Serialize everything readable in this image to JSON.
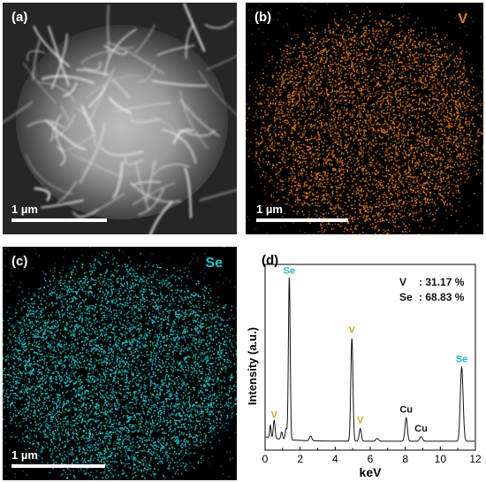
{
  "panel_a": {
    "label": "(a)",
    "scale": "1 µm"
  },
  "panel_b": {
    "label": "(b)",
    "element": "V",
    "scale": "1 µm",
    "color": "#e07b1f"
  },
  "panel_c": {
    "label": "(c)",
    "element": "Se",
    "scale": "1 µm",
    "color": "#22c3c8"
  },
  "panel_d": {
    "label": "(d)",
    "composition": [
      {
        "element": "V",
        "value": "31.17 %"
      },
      {
        "element": "Se",
        "value": "68.83 %"
      }
    ]
  },
  "chart_data": {
    "type": "line",
    "title": "",
    "xlabel": "keV",
    "ylabel": "Intensity (a.u.)",
    "xlim": [
      0,
      12
    ],
    "ylim": [
      0,
      100
    ],
    "xticks": [
      0,
      2,
      4,
      6,
      8,
      10,
      12
    ],
    "peaks": [
      {
        "x": 0.52,
        "y": 10,
        "width": 0.05,
        "label": "V",
        "label_color": "#d8a21b"
      },
      {
        "x": 0.3,
        "y": 7,
        "width": 0.04,
        "label": "",
        "label_color": ""
      },
      {
        "x": 0.95,
        "y": 4,
        "width": 0.05,
        "label": "",
        "label_color": ""
      },
      {
        "x": 1.2,
        "y": 6,
        "width": 0.05,
        "label": "",
        "label_color": ""
      },
      {
        "x": 1.38,
        "y": 90,
        "width": 0.05,
        "label": "Se",
        "label_color": "#22b8c0"
      },
      {
        "x": 2.6,
        "y": 2.5,
        "width": 0.07,
        "label": "",
        "label_color": ""
      },
      {
        "x": 4.95,
        "y": 57,
        "width": 0.06,
        "label": "V",
        "label_color": "#d8a21b"
      },
      {
        "x": 5.43,
        "y": 7,
        "width": 0.06,
        "label": "V",
        "label_color": "#d8a21b"
      },
      {
        "x": 6.4,
        "y": 1.5,
        "width": 0.08,
        "label": "",
        "label_color": ""
      },
      {
        "x": 8.05,
        "y": 13,
        "width": 0.07,
        "label": "Cu",
        "label_color": "#111111"
      },
      {
        "x": 8.9,
        "y": 2.5,
        "width": 0.08,
        "label": "Cu",
        "label_color": "#111111"
      },
      {
        "x": 11.22,
        "y": 41,
        "width": 0.08,
        "label": "Se",
        "label_color": "#22b8c0"
      }
    ]
  }
}
